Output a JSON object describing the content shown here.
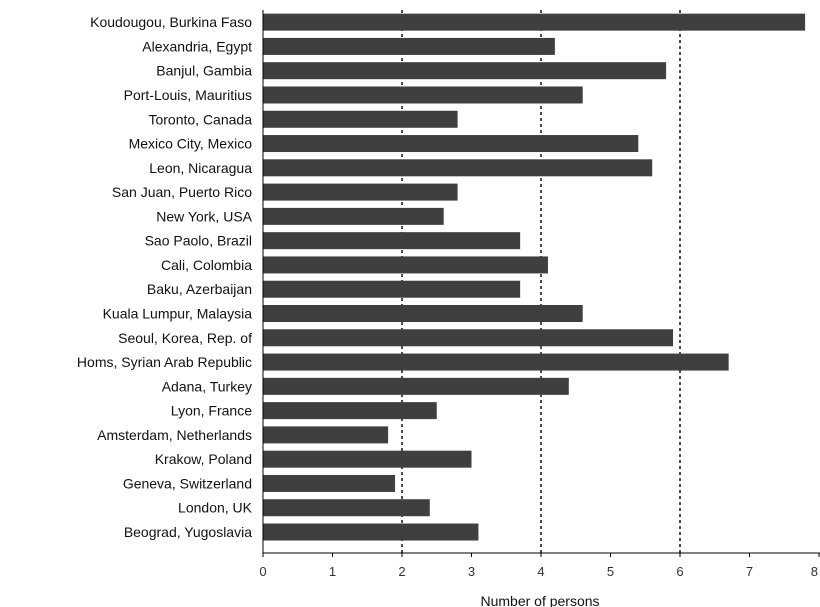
{
  "chart_data": {
    "type": "bar",
    "orientation": "horizontal",
    "title": "",
    "xlabel": "Number of persons",
    "ylabel": "",
    "xlim": [
      0,
      8
    ],
    "xticks": [
      0,
      1,
      2,
      3,
      4,
      5,
      6,
      7,
      8
    ],
    "grid": "vertical dashed lines at x = 2, 4, 6",
    "bar_color": "#3f3f3f",
    "categories": [
      "Koudougou, Burkina Faso",
      "Alexandria, Egypt",
      "Banjul, Gambia",
      "Port-Louis, Mauritius",
      "Toronto, Canada",
      "Mexico City, Mexico",
      "Leon, Nicaragua",
      "San Juan, Puerto Rico",
      "New York, USA",
      "Sao Paolo, Brazil",
      "Cali, Colombia",
      "Baku, Azerbaijan",
      "Kuala Lumpur, Malaysia",
      "Seoul, Korea, Rep. of",
      "Homs, Syrian Arab Republic",
      "Adana, Turkey",
      "Lyon, France",
      "Amsterdam, Netherlands",
      "Krakow, Poland",
      "Geneva, Switzerland",
      "London, UK",
      "Beograd, Yugoslavia"
    ],
    "values": [
      7.8,
      4.2,
      5.8,
      4.6,
      2.8,
      5.4,
      5.6,
      2.8,
      2.6,
      3.7,
      4.1,
      3.7,
      4.6,
      5.9,
      6.7,
      4.4,
      2.5,
      1.8,
      3.0,
      1.9,
      2.4,
      3.1
    ]
  }
}
